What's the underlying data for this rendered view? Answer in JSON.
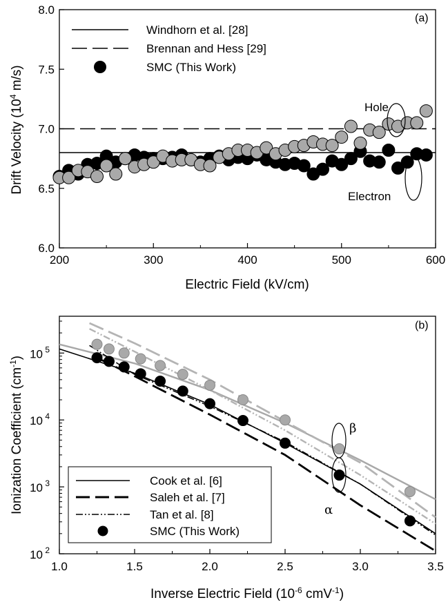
{
  "chart_data": [
    {
      "panel": "(a)",
      "type": "scatter",
      "xlabel": "Electric Field (kV/cm)",
      "ylabel": "Drift Velocity (10",
      "ylabel_sup": "4",
      "ylabel_suffix": " m/s)",
      "xlim": [
        200,
        600
      ],
      "ylim": [
        6.0,
        8.0
      ],
      "xticks": [
        200,
        300,
        400,
        500,
        600
      ],
      "xtick_labels": [
        "200",
        "300",
        "400",
        "500",
        "600"
      ],
      "yticks": [
        6.0,
        6.5,
        7.0,
        7.5,
        8.0
      ],
      "ytick_labels": [
        "6.0",
        "6.5",
        "7.0",
        "7.5",
        "8.0"
      ],
      "grid": false,
      "legend_position": "top-left",
      "series": [
        {
          "name": "Windhorn et al. [28]",
          "kind": "hline",
          "style": "solid",
          "color": "#000000",
          "value": 6.8
        },
        {
          "name": "Brennan and Hess [29]",
          "kind": "hline",
          "style": "dashed",
          "color": "#000000",
          "value": 7.0
        },
        {
          "name": "SMC (This Work)",
          "kind": "legend-marker",
          "color": "#000000"
        },
        {
          "name": "Electron",
          "kind": "points",
          "color": "#000000",
          "x": [
            200,
            210,
            220,
            230,
            240,
            250,
            260,
            270,
            280,
            290,
            300,
            310,
            320,
            330,
            340,
            350,
            360,
            370,
            380,
            390,
            400,
            410,
            420,
            430,
            440,
            450,
            460,
            470,
            480,
            490,
            500,
            510,
            520,
            530,
            540,
            550,
            560,
            570,
            580,
            590
          ],
          "y": [
            6.6,
            6.65,
            6.62,
            6.7,
            6.71,
            6.77,
            6.72,
            6.75,
            6.78,
            6.76,
            6.75,
            6.75,
            6.76,
            6.78,
            6.74,
            6.72,
            6.75,
            6.77,
            6.74,
            6.76,
            6.75,
            6.78,
            6.74,
            6.72,
            6.7,
            6.71,
            6.69,
            6.62,
            6.66,
            6.73,
            6.7,
            6.75,
            6.81,
            6.73,
            6.72,
            6.82,
            6.67,
            6.72,
            6.79,
            6.78
          ]
        },
        {
          "name": "Hole",
          "kind": "points",
          "color": "#a9a9a9",
          "x": [
            200,
            210,
            220,
            230,
            240,
            250,
            260,
            270,
            280,
            290,
            300,
            310,
            320,
            330,
            340,
            350,
            360,
            370,
            380,
            390,
            400,
            410,
            420,
            430,
            440,
            450,
            460,
            470,
            480,
            490,
            500,
            510,
            520,
            530,
            540,
            550,
            560,
            570,
            580,
            590
          ],
          "y": [
            6.59,
            6.59,
            6.65,
            6.64,
            6.6,
            6.69,
            6.62,
            6.75,
            6.68,
            6.7,
            6.72,
            6.77,
            6.73,
            6.74,
            6.74,
            6.7,
            6.69,
            6.76,
            6.79,
            6.82,
            6.82,
            6.8,
            6.84,
            6.79,
            6.82,
            6.85,
            6.86,
            6.89,
            6.87,
            6.86,
            6.93,
            7.02,
            6.88,
            6.99,
            6.97,
            7.04,
            7.02,
            7.05,
            7.05,
            7.15
          ]
        }
      ],
      "annotations": [
        {
          "text": "Hole",
          "x": 555,
          "y": 7.06
        },
        {
          "text": "Electron",
          "x": 555,
          "y": 6.52
        },
        {
          "text": "(a)"
        }
      ]
    },
    {
      "panel": "(b)",
      "type": "line",
      "xlabel": "Inverse Electric Field (10",
      "xlabel_sup": "-6",
      "xlabel_suffix": " cmV",
      "xlabel_sup2": "-1",
      "xlabel_close": ")",
      "ylabel": "Ionization Coefficient (cm",
      "ylabel_sup": "-1",
      "ylabel_close": ")",
      "xlim": [
        1.0,
        3.5
      ],
      "ylim_log10": [
        2,
        5.55
      ],
      "yscale": "log",
      "xticks": [
        1.0,
        1.5,
        2.0,
        2.5,
        3.0,
        3.5
      ],
      "xtick_labels": [
        "1.0",
        "1.5",
        "2.0",
        "2.5",
        "3.0",
        "3.5"
      ],
      "yticks_log10": [
        2,
        3,
        4,
        5
      ],
      "ytick_base": "10",
      "ytick_exps": [
        "2",
        "3",
        "4",
        "5"
      ],
      "grid": false,
      "legend_position": "bottom-left",
      "series": [
        {
          "name": "Cook et al. [6]",
          "kind": "line",
          "style": "solid",
          "color": "#000000",
          "carrier": "alpha",
          "x": [
            1.0,
            1.5,
            2.0,
            2.5,
            3.0,
            3.5
          ],
          "y": [
            115000,
            50000,
            17000,
            4500,
            1100,
            200
          ]
        },
        {
          "name": "",
          "kind": "line",
          "style": "solid",
          "color": "#a8a8a8",
          "carrier": "beta",
          "x": [
            1.0,
            1.5,
            2.0,
            2.5,
            3.0,
            3.5
          ],
          "y": [
            135000,
            70000,
            28000,
            9000,
            2500,
            650
          ]
        },
        {
          "name": "Saleh et al. [7]",
          "kind": "line",
          "style": "dashed",
          "color": "#000000",
          "carrier": "alpha",
          "x": [
            1.25,
            1.5,
            2.0,
            2.5,
            3.0,
            3.5
          ],
          "y": [
            85000,
            45000,
            12000,
            3000,
            530,
            110
          ]
        },
        {
          "name": "",
          "kind": "line",
          "style": "dashed",
          "color": "#b4b4b4",
          "carrier": "beta",
          "x": [
            1.2,
            1.5,
            2.0,
            2.5,
            3.0,
            3.5
          ],
          "y": [
            280000,
            140000,
            40000,
            9500,
            2300,
            350
          ]
        },
        {
          "name": "Tan et al. [8]",
          "kind": "line",
          "style": "dashdotdot",
          "color": "#000000",
          "carrier": "alpha",
          "x": [
            1.2,
            1.5,
            2.0,
            2.5,
            3.0,
            3.5
          ],
          "y": [
            130000,
            48000,
            16000,
            4700,
            1100,
            190
          ]
        },
        {
          "name": "",
          "kind": "line",
          "style": "dashdotdot",
          "color": "#b4b4b4",
          "carrier": "beta",
          "x": [
            1.2,
            1.5,
            2.0,
            2.5,
            3.0,
            3.5
          ],
          "y": [
            230000,
            105000,
            28000,
            7000,
            1500,
            280
          ]
        },
        {
          "name": "SMC (This Work)",
          "kind": "points",
          "color": "#000000",
          "carrier": "alpha",
          "x": [
            1.25,
            1.33,
            1.43,
            1.54,
            1.67,
            1.82,
            2.0,
            2.22,
            2.5,
            2.86,
            3.33
          ],
          "y": [
            85000,
            75000,
            62000,
            49000,
            38000,
            27000,
            17500,
            9800,
            4500,
            1500,
            310
          ]
        },
        {
          "name": "",
          "kind": "points",
          "color": "#a9a9a9",
          "carrier": "beta",
          "x": [
            1.25,
            1.33,
            1.43,
            1.54,
            1.67,
            1.82,
            2.0,
            2.22,
            2.5,
            2.86,
            3.33
          ],
          "y": [
            135000,
            115000,
            100000,
            82000,
            65000,
            48000,
            33000,
            20000,
            10000,
            3700,
            850
          ]
        }
      ],
      "annotations": [
        {
          "text": "β",
          "x": 2.95,
          "y": 6500
        },
        {
          "text": "α",
          "x": 2.75,
          "y": 450
        },
        {
          "text": "(b)"
        }
      ]
    }
  ]
}
